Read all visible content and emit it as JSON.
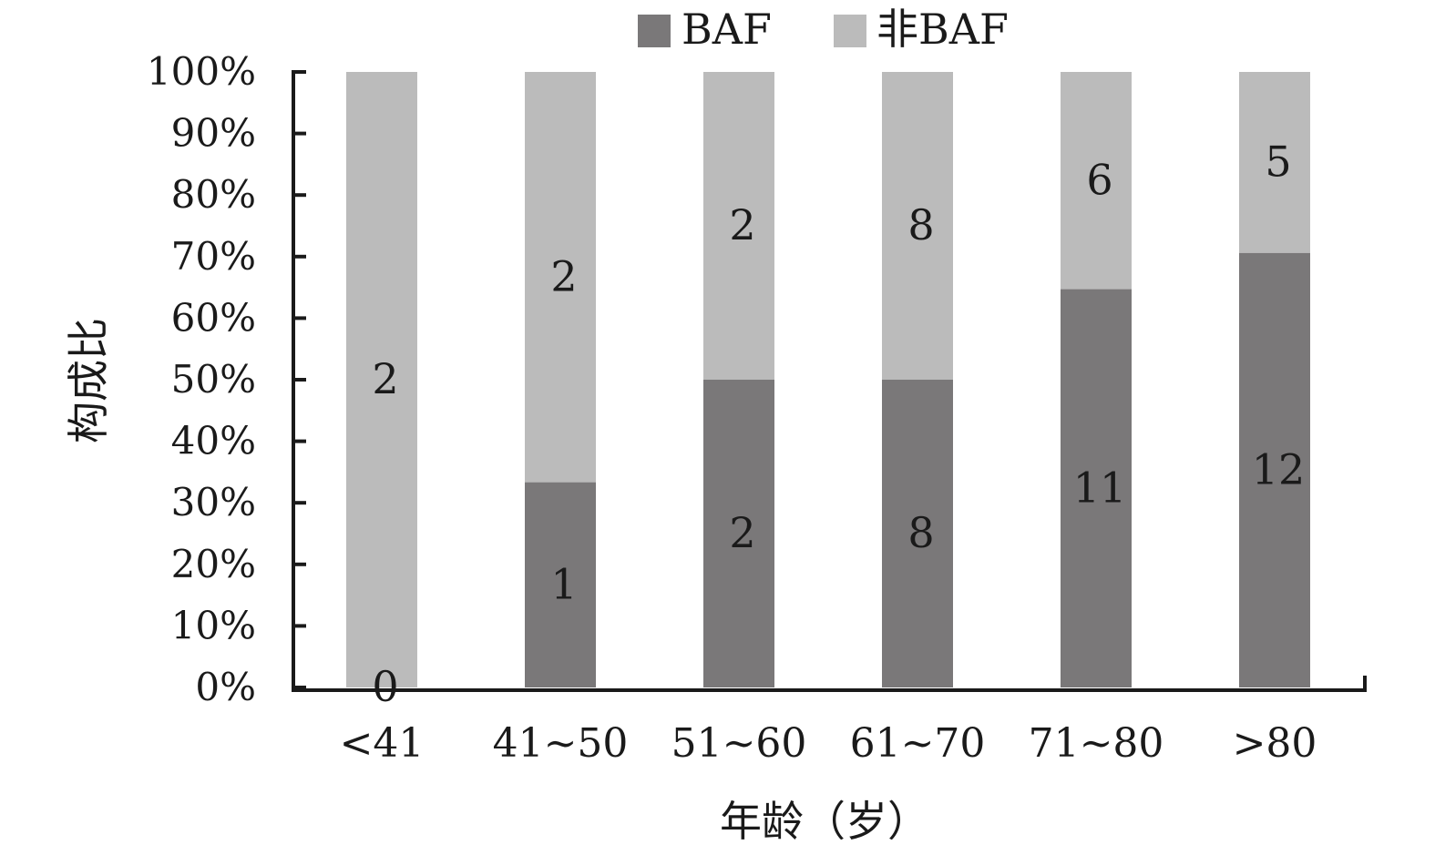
{
  "chart_data": {
    "type": "bar",
    "stacked": true,
    "normalized": true,
    "categories": [
      "<41",
      "41~50",
      "51~60",
      "61~70",
      "71~80",
      ">80"
    ],
    "series": [
      {
        "name": "BAF",
        "values": [
          0,
          1,
          2,
          8,
          11,
          12
        ],
        "color": "#7a7879"
      },
      {
        "name": "非BAF",
        "values": [
          2,
          2,
          2,
          8,
          6,
          5
        ],
        "color": "#bbbbbb"
      }
    ],
    "xlabel": "年龄（岁）",
    "ylabel": "构成比",
    "ylim": [
      0,
      100
    ],
    "yticks": [
      "0%",
      "10%",
      "20%",
      "30%",
      "40%",
      "50%",
      "60%",
      "70%",
      "80%",
      "90%",
      "100%"
    ],
    "legend_position": "top",
    "grid": false
  }
}
